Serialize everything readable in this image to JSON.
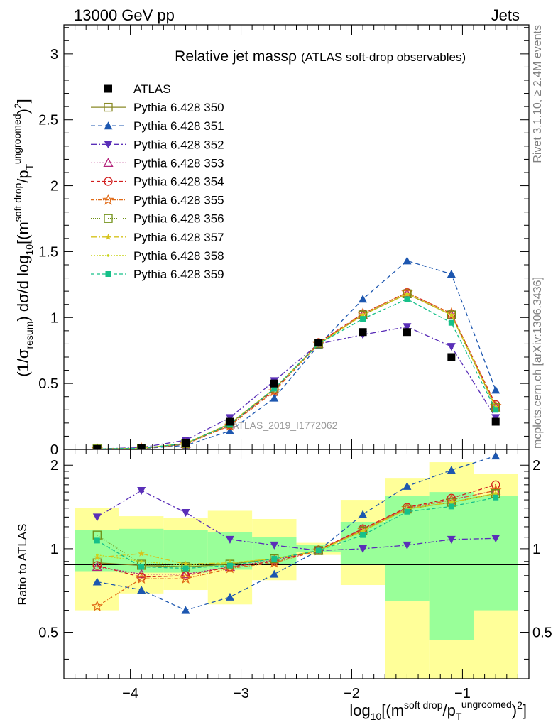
{
  "header": {
    "energy_label": "13000 GeV pp",
    "process_label": "Jets"
  },
  "side_labels": {
    "rivet": "Rivet 3.1.10, ≥ 2.4M events",
    "source": "mcplots.cern.ch [arXiv:1306.3436]"
  },
  "chart_data": {
    "type": "line",
    "title": "Relative jet massρ",
    "subtitle": "(ATLAS soft-drop observables)",
    "watermark": "ATLAS_2019_I1772062",
    "ylabel_main_parts": {
      "open": "(1/σ",
      "sub": "resum",
      "mid": ") dσ/d log",
      "sub2": "10",
      "rest": "[(m",
      "sup": "soft drop",
      "slash": "/p",
      "sub3": "T",
      "sup2": "ungroomed",
      "end": ")",
      "sup3": "2",
      "close": "]"
    },
    "ylabel_ratio": "Ratio to ATLAS",
    "xlabel_parts": {
      "pre": "log",
      "sub": "10",
      "a": "[(m",
      "sup": "soft drop",
      "b": "/p",
      "sub2": "T",
      "sup2": "ungroomed",
      "c": ")",
      "sup3": "2",
      "d": "]"
    },
    "x_bin_edges": [
      -4.5,
      -4.1,
      -3.7,
      -3.3,
      -2.9,
      -2.5,
      -2.1,
      -1.7,
      -1.3,
      -0.9,
      -0.5
    ],
    "x": [
      -4.3,
      -3.9,
      -3.5,
      -3.1,
      -2.7,
      -2.3,
      -1.9,
      -1.5,
      -1.1,
      -0.7
    ],
    "xlim": [
      -4.6,
      -0.4
    ],
    "xticks": [
      -4,
      -3,
      -2,
      -1
    ],
    "xtick_labels": [
      "−4",
      "−3",
      "−2",
      "−1"
    ],
    "ylim_main": [
      0,
      3.22
    ],
    "yticks_main": [
      0,
      0.5,
      1,
      1.5,
      2,
      2.5,
      3
    ],
    "ytick_labels_main": [
      "0",
      "0.5",
      "1",
      "1.5",
      "2",
      "2.5",
      "3"
    ],
    "ylim_ratio": [
      0.34,
      2.28
    ],
    "yticks_ratio": [
      0.5,
      1,
      2
    ],
    "ytick_labels_ratio": [
      "0.5",
      "1",
      "2"
    ],
    "data": {
      "name": "ATLAS",
      "values": [
        0.003,
        0.008,
        0.05,
        0.21,
        0.5,
        0.81,
        0.89,
        0.89,
        0.7,
        0.21
      ]
    },
    "band_1sigma": {
      "low": [
        0.83,
        0.82,
        0.82,
        0.84,
        0.88,
        0.97,
        0.88,
        0.65,
        0.47,
        0.6
      ],
      "high": [
        1.17,
        1.18,
        1.17,
        1.15,
        1.1,
        1.03,
        1.25,
        1.55,
        1.6,
        1.55
      ]
    },
    "band_2sigma": {
      "low": [
        0.6,
        0.69,
        0.71,
        0.63,
        0.77,
        0.95,
        0.74,
        0.34,
        0.34,
        0.34
      ],
      "high": [
        1.4,
        1.31,
        1.29,
        1.37,
        1.28,
        1.05,
        1.5,
        1.8,
        2.05,
        1.86
      ]
    },
    "series": [
      {
        "name": "Pythia 6.428 350",
        "color": "#8a8a26",
        "dash": "none",
        "marker": "open-square",
        "values": [
          0.003,
          0.008,
          0.045,
          0.195,
          0.46,
          0.8,
          1.02,
          1.18,
          1.02,
          0.32
        ],
        "ratio": [
          0.89,
          0.87,
          0.86,
          0.88,
          0.92,
          0.985,
          1.16,
          1.39,
          1.47,
          1.58
        ]
      },
      {
        "name": "Pythia 6.428 351",
        "color": "#1d57b0",
        "dash": "6,4",
        "marker": "triangle-up",
        "values": [
          0.002,
          0.006,
          0.03,
          0.14,
          0.39,
          0.79,
          1.14,
          1.43,
          1.33,
          0.45
        ],
        "ratio": [
          0.76,
          0.71,
          0.6,
          0.67,
          0.81,
          0.985,
          1.33,
          1.68,
          1.92,
          2.16
        ]
      },
      {
        "name": "Pythia 6.428 352",
        "color": "#5a2fb8",
        "dash": "8,3,2,3",
        "marker": "triangle-down",
        "values": [
          0.004,
          0.014,
          0.07,
          0.24,
          0.52,
          0.8,
          0.87,
          0.93,
          0.78,
          0.24
        ],
        "ratio": [
          1.3,
          1.62,
          1.35,
          1.08,
          1.03,
          0.985,
          1.0,
          1.03,
          1.08,
          1.09
        ]
      },
      {
        "name": "Pythia 6.428 353",
        "color": "#b4237a",
        "dash": "2,2",
        "marker": "open-triangle",
        "values": [
          0.003,
          0.007,
          0.042,
          0.19,
          0.455,
          0.8,
          1.02,
          1.18,
          1.02,
          0.32
        ],
        "ratio": [
          0.86,
          0.81,
          0.81,
          0.86,
          0.91,
          0.985,
          1.18,
          1.4,
          1.5,
          1.62
        ]
      },
      {
        "name": "Pythia 6.428 354",
        "color": "#d11d1d",
        "dash": "5,3",
        "marker": "open-circle",
        "values": [
          0.003,
          0.007,
          0.041,
          0.185,
          0.45,
          0.81,
          1.03,
          1.19,
          1.03,
          0.34
        ],
        "ratio": [
          0.87,
          0.79,
          0.8,
          0.86,
          0.9,
          0.99,
          1.18,
          1.41,
          1.52,
          1.7
        ]
      },
      {
        "name": "Pythia 6.428 355",
        "color": "#e06a16",
        "dash": "5,2,1,2",
        "marker": "open-star",
        "values": [
          0.002,
          0.007,
          0.04,
          0.18,
          0.44,
          0.8,
          1.03,
          1.19,
          1.03,
          0.33
        ],
        "ratio": [
          0.62,
          0.78,
          0.78,
          0.85,
          0.89,
          0.985,
          1.17,
          1.4,
          1.5,
          1.62
        ]
      },
      {
        "name": "Pythia 6.428 356",
        "color": "#6e8f14",
        "dash": "1,2",
        "marker": "open-square",
        "values": [
          0.004,
          0.009,
          0.045,
          0.195,
          0.46,
          0.8,
          1.02,
          1.18,
          1.02,
          0.32
        ],
        "ratio": [
          1.12,
          0.88,
          0.86,
          0.88,
          0.92,
          0.985,
          1.16,
          1.39,
          1.47,
          1.58
        ]
      },
      {
        "name": "Pythia 6.428 357",
        "color": "#d6c31c",
        "dash": "8,3,2,3",
        "marker": "star",
        "values": [
          0.003,
          0.008,
          0.046,
          0.195,
          0.46,
          0.8,
          1.02,
          1.18,
          1.02,
          0.32
        ],
        "ratio": [
          0.93,
          0.96,
          0.88,
          0.89,
          0.92,
          0.985,
          1.16,
          1.39,
          1.47,
          1.58
        ]
      },
      {
        "name": "Pythia 6.428 358",
        "color": "#c8d41a",
        "dash": "2,2",
        "marker": "dot",
        "values": [
          0.003,
          0.008,
          0.045,
          0.195,
          0.46,
          0.8,
          1.02,
          1.18,
          1.02,
          0.32
        ],
        "ratio": [
          0.95,
          0.9,
          0.87,
          0.89,
          0.92,
          0.985,
          1.16,
          1.39,
          1.47,
          1.58
        ]
      },
      {
        "name": "Pythia 6.428 359",
        "color": "#16c089",
        "dash": "5,3",
        "marker": "square",
        "values": [
          0.004,
          0.008,
          0.044,
          0.19,
          0.46,
          0.8,
          0.99,
          1.14,
          0.96,
          0.3
        ],
        "ratio": [
          1.07,
          0.86,
          0.85,
          0.87,
          0.92,
          0.985,
          1.12,
          1.36,
          1.42,
          1.53
        ]
      }
    ]
  }
}
